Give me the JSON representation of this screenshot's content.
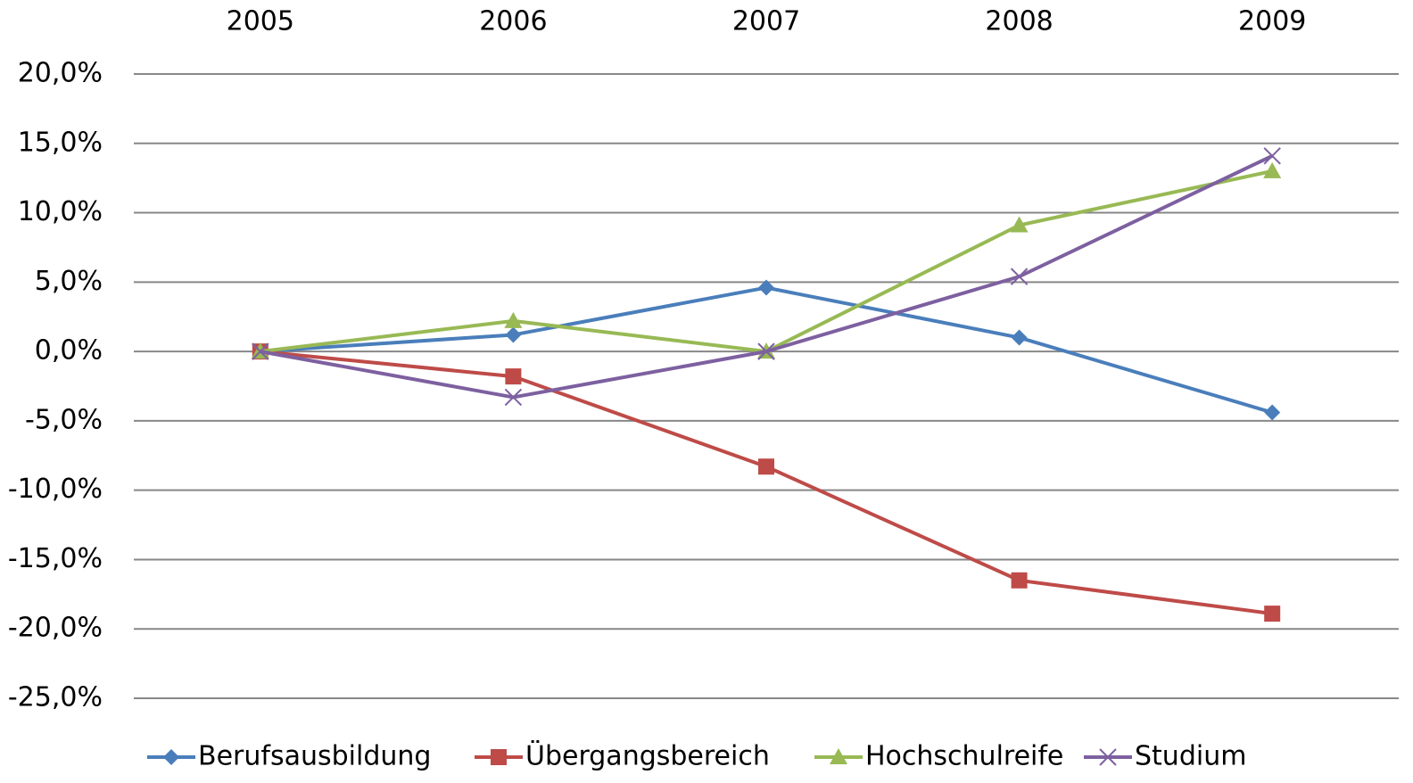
{
  "chart_data": {
    "type": "line",
    "categories": [
      "2005",
      "2006",
      "2007",
      "2008",
      "2009"
    ],
    "series": [
      {
        "name": "Berufsausbildung",
        "color": "#4a7ebb",
        "marker": "diamond",
        "values": [
          0,
          1.2,
          4.6,
          1.0,
          -4.4
        ]
      },
      {
        "name": "Übergangsbereich",
        "color": "#be4b48",
        "marker": "square",
        "values": [
          0,
          -1.8,
          -8.3,
          -16.5,
          -18.9
        ]
      },
      {
        "name": "Hochschulreife",
        "color": "#98b954",
        "marker": "triangle",
        "values": [
          0,
          2.2,
          0,
          9.1,
          13.0
        ]
      },
      {
        "name": "Studium",
        "color": "#7d60a0",
        "marker": "x",
        "values": [
          0,
          -3.3,
          0,
          5.4,
          14.1
        ]
      }
    ],
    "ylim": [
      -25,
      20
    ],
    "yticks": [
      {
        "value": -25,
        "label": "-25,0%"
      },
      {
        "value": -20,
        "label": "-20,0%"
      },
      {
        "value": -15,
        "label": "-15,0%"
      },
      {
        "value": -10,
        "label": "-10,0%"
      },
      {
        "value": -5,
        "label": "-5,0%"
      },
      {
        "value": 0,
        "label": "0,0%"
      },
      {
        "value": 5,
        "label": "5,0%"
      },
      {
        "value": 10,
        "label": "10,0%"
      },
      {
        "value": 15,
        "label": "15,0%"
      },
      {
        "value": 20,
        "label": "20,0%"
      }
    ],
    "grid": true,
    "legend": "bottom"
  }
}
